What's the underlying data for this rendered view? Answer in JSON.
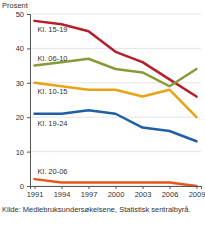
{
  "chart_data": {
    "type": "line",
    "y_label": "Prosent",
    "source": "Kilde: Mediebruksundersøkelsene, Statistisk sentralbyrå.",
    "x": [
      1991,
      1994,
      1997,
      2000,
      2003,
      2006,
      2009
    ],
    "xlim": [
      1990.5,
      2009.5
    ],
    "xticks": [
      1991,
      1994,
      1997,
      2000,
      2003,
      2006,
      2009
    ],
    "ylim": [
      0,
      50
    ],
    "yticks": [
      0,
      10,
      20,
      30,
      40,
      50
    ],
    "grid": true,
    "series": [
      {
        "name": "Kl. 15-19",
        "color": "#b3202a",
        "values": [
          48,
          47,
          45,
          39,
          36,
          31,
          26
        ]
      },
      {
        "name": "Kl. 06-10",
        "color": "#8a9a3a",
        "values": [
          35,
          36,
          37,
          34,
          33,
          29,
          34
        ]
      },
      {
        "name": "Kl. 10-15",
        "color": "#e8a317",
        "values": [
          30,
          29,
          28,
          28,
          26,
          28,
          20
        ]
      },
      {
        "name": "Kl. 19-24",
        "color": "#1f5fa8",
        "values": [
          21,
          21,
          22,
          21,
          17,
          16,
          13
        ]
      },
      {
        "name": "Kl. 20-06",
        "color": "#e8561c",
        "values": [
          2,
          1,
          1,
          1,
          1,
          1,
          0
        ]
      }
    ]
  }
}
